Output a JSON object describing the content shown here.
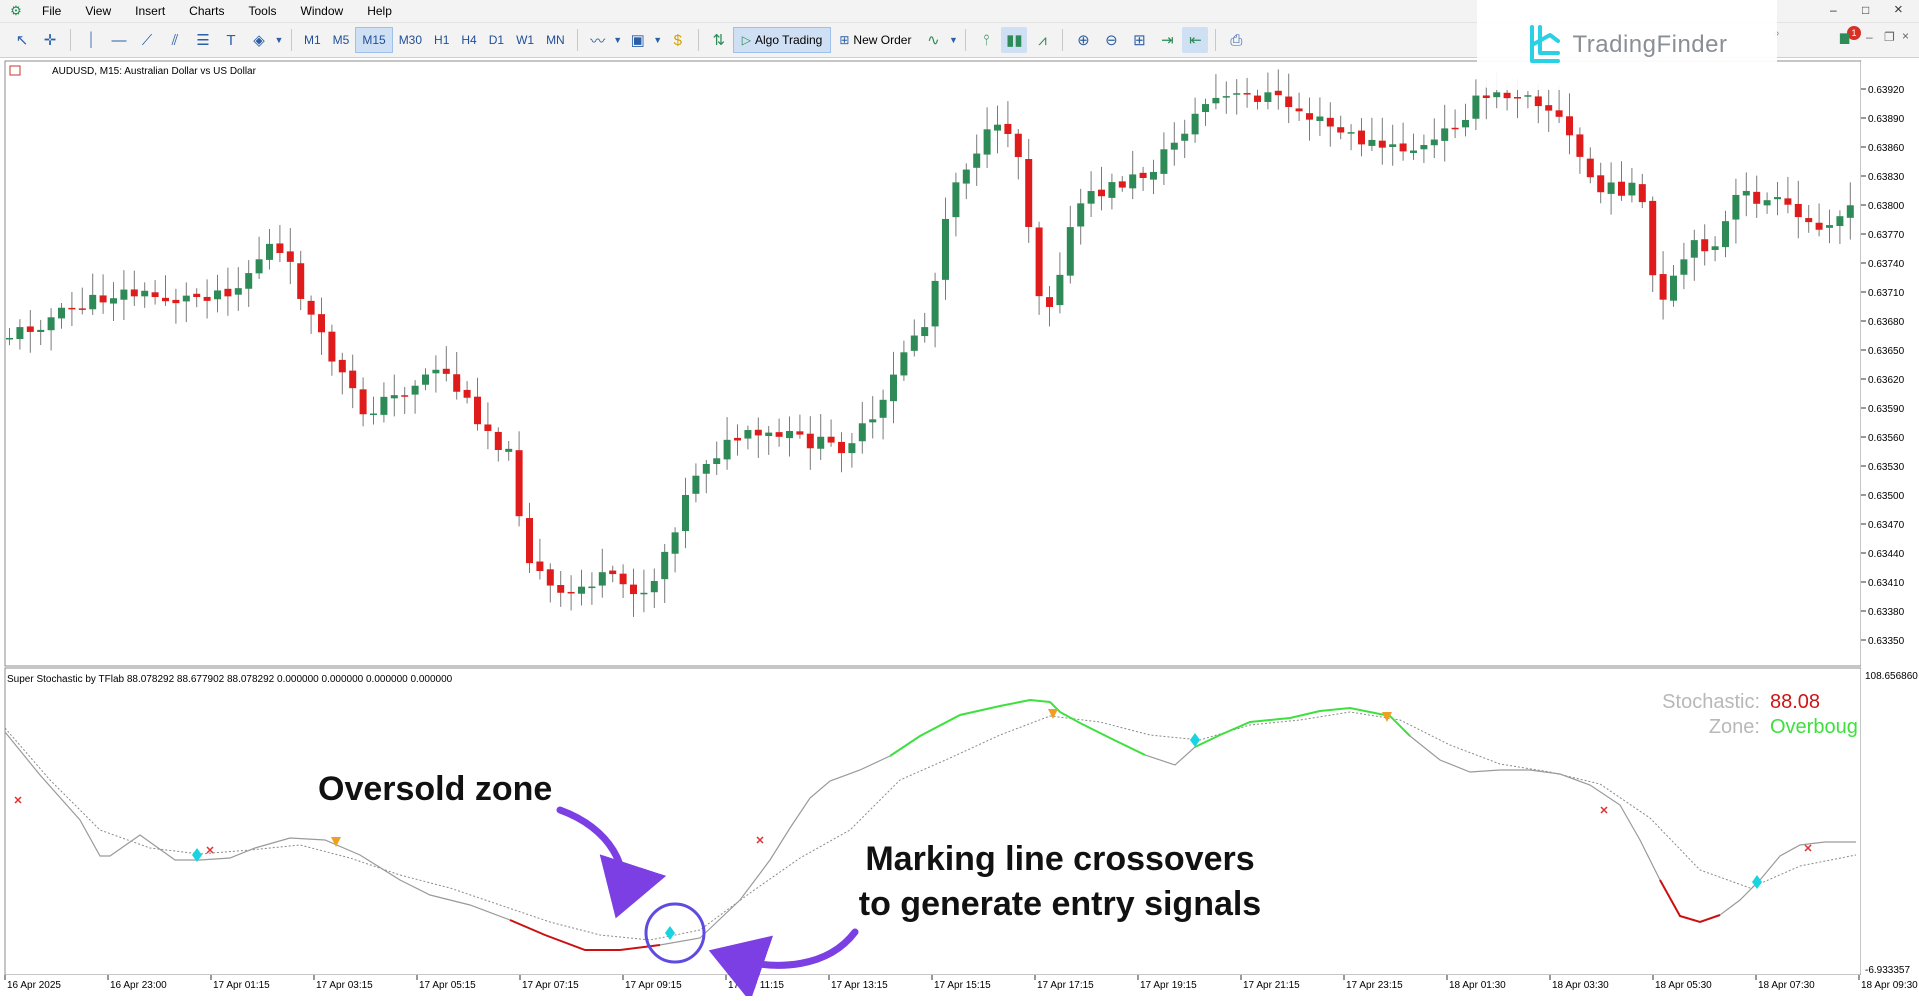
{
  "menu": [
    "File",
    "View",
    "Insert",
    "Charts",
    "Tools",
    "Window",
    "Help"
  ],
  "toolbar": {
    "timeframes": [
      "M1",
      "M5",
      "M15",
      "M30",
      "H1",
      "H4",
      "D1",
      "W1",
      "MN"
    ],
    "active_timeframe": "M15",
    "algo_trading": "Algo Trading",
    "new_order": "New Order",
    "notification_count": "1"
  },
  "brand": {
    "name": "TradingFinder"
  },
  "window": {
    "minimize": "–",
    "maximize": "□",
    "close": "×"
  },
  "chart": {
    "title": "AUDUSD, M15:  Australian Dollar vs US Dollar",
    "price_labels": [
      "0.63920",
      "0.63890",
      "0.63860",
      "0.63830",
      "0.63800",
      "0.63770",
      "0.63740",
      "0.63710",
      "0.63680",
      "0.63650",
      "0.63620",
      "0.63590",
      "0.63560",
      "0.63530",
      "0.63500",
      "0.63470",
      "0.63440",
      "0.63410",
      "0.63380",
      "0.63350"
    ],
    "time_labels": [
      "16 Apr 2025",
      "16 Apr 23:00",
      "17 Apr 01:15",
      "17 Apr 03:15",
      "17 Apr 05:15",
      "17 Apr 07:15",
      "17 Apr 09:15",
      "17 Apr 11:15",
      "17 Apr 13:15",
      "17 Apr 15:15",
      "17 Apr 17:15",
      "17 Apr 19:15",
      "17 Apr 21:15",
      "17 Apr 23:15",
      "18 Apr 01:30",
      "18 Apr 03:30",
      "18 Apr 05:30",
      "18 Apr 07:30",
      "18 Apr 09:30"
    ],
    "colors": {
      "bull": "#2e8b57",
      "bear": "#e01b1b",
      "wick": "#7a7a7a"
    }
  },
  "indicator": {
    "title": "Super Stochastic by TFlab 88.078292 88.677902 88.078292 0.000000 0.000000 0.000000 0.000000",
    "scale_max": "108.656860",
    "scale_min": "-6.933357",
    "stochastic_label": "Stochastic:",
    "stochastic_value": "88.08",
    "zone_label": "Zone:",
    "zone_value": "Overboug",
    "colors": {
      "main": "#9a9a9a",
      "overbought": "#3ee03e",
      "oversold": "#cc1010",
      "buy": "#19d3e0",
      "sell": "#f0a020",
      "cross": "#e03030"
    }
  },
  "annotations": {
    "oversold": "Oversold zone",
    "crossover_line1": "Marking line crossovers",
    "crossover_line2": "to generate entry signals",
    "arrow_color": "#7b3fe4",
    "circle_color": "#5e4be0"
  }
}
